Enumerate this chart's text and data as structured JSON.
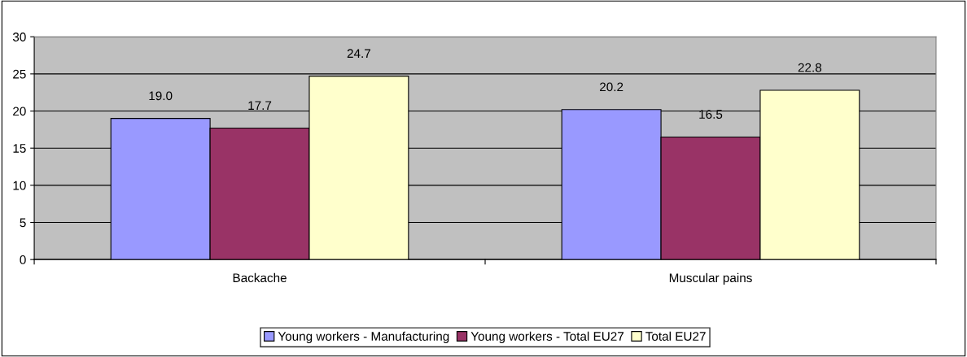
{
  "chart_data": {
    "type": "bar",
    "categories": [
      "Backache",
      "Muscular pains"
    ],
    "series": [
      {
        "name": "Young workers - Manufacturing",
        "color": "#9999ff",
        "values": [
          19.0,
          20.2
        ],
        "value_labels": [
          "19.0",
          "20.2"
        ]
      },
      {
        "name": "Young workers - Total EU27",
        "color": "#993366",
        "values": [
          17.7,
          16.5
        ],
        "value_labels": [
          "17.7",
          "16.5"
        ]
      },
      {
        "name": "Total EU27",
        "color": "#ffffcc",
        "values": [
          24.7,
          22.8
        ],
        "value_labels": [
          "24.7",
          "22.8"
        ]
      }
    ],
    "ylim": [
      0,
      30
    ],
    "yticks": [
      0,
      5,
      10,
      15,
      20,
      25,
      30
    ],
    "grid": "y",
    "legend": "bottom"
  }
}
